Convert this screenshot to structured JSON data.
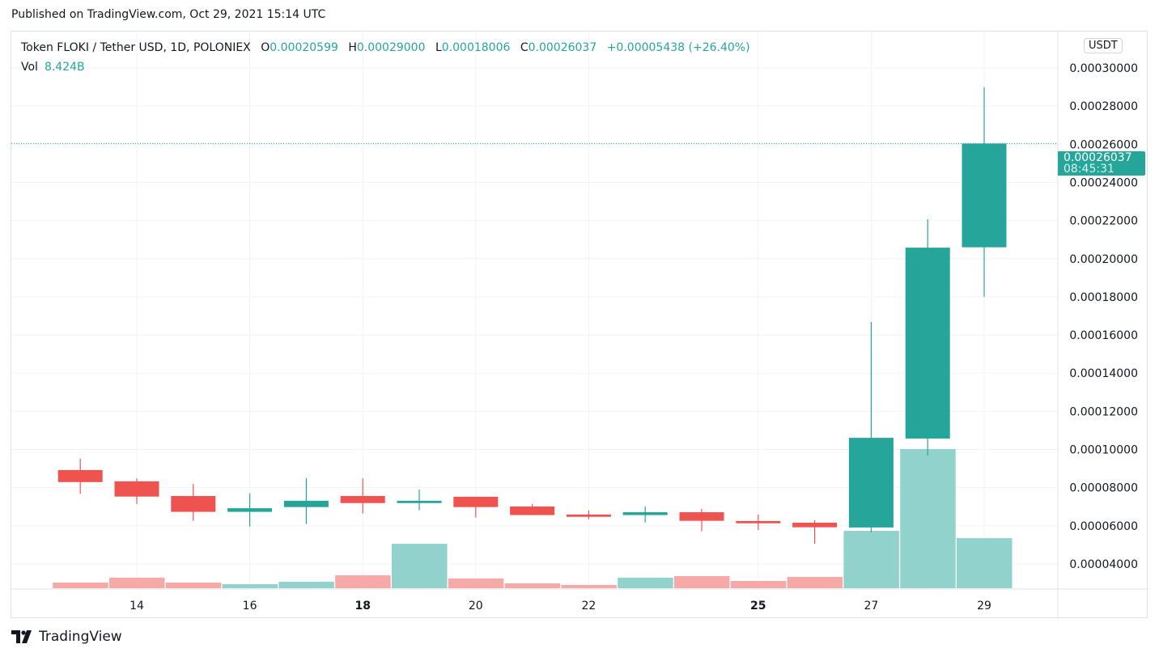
{
  "published": "Published on TradingView.com, Oct 29, 2021 15:14 UTC",
  "legend": {
    "symbol": "Token FLOKI / Tether USD, 1D, POLONIEX",
    "o_label": "O",
    "o": "0.00020599",
    "h_label": "H",
    "h": "0.00029000",
    "l_label": "L",
    "l": "0.00018006",
    "c_label": "C",
    "c": "0.00026037",
    "change": "+0.00005438 (+26.40%)",
    "vol_label": "Vol",
    "vol": "8.424B"
  },
  "price_axis": {
    "unit": "USDT",
    "current_price": "0.00026037",
    "countdown": "08:45:31"
  },
  "footer": {
    "brand": "TradingView"
  },
  "colors": {
    "up": "#26a69a",
    "down": "#ef5350",
    "up_vol": "#92d2cc",
    "down_vol": "#f7a9a7"
  },
  "chart_data": {
    "type": "candlestick",
    "title": "Token FLOKI / Tether USD, 1D, POLONIEX",
    "ylabel": "USDT",
    "ylim": [
      3e-05,
      0.00031
    ],
    "yticks": [
      "0.00004000",
      "0.00006000",
      "0.00008000",
      "0.00010000",
      "0.00012000",
      "0.00014000",
      "0.00016000",
      "0.00018000",
      "0.00020000",
      "0.00022000",
      "0.00024000",
      "0.00026000",
      "0.00028000",
      "0.00030000"
    ],
    "ytick_values": [
      4e-05,
      6e-05,
      8e-05,
      0.0001,
      0.00012,
      0.00014,
      0.00016,
      0.00018,
      0.0002,
      0.00022,
      0.00024,
      0.00026,
      0.00028,
      0.0003
    ],
    "xticks": [
      {
        "day": 14,
        "label": "14"
      },
      {
        "day": 16,
        "label": "16"
      },
      {
        "day": 18,
        "label": "18",
        "bold": true
      },
      {
        "day": 20,
        "label": "20"
      },
      {
        "day": 22,
        "label": "22"
      },
      {
        "day": 25,
        "label": "25",
        "bold": true
      },
      {
        "day": 27,
        "label": "27"
      },
      {
        "day": 29,
        "label": "29"
      }
    ],
    "candles": [
      {
        "day": 13,
        "o": 8.92e-05,
        "h": 9.51e-05,
        "l": 7.68e-05,
        "c": 8.29e-05,
        "vol": 0.95
      },
      {
        "day": 14,
        "o": 8.33e-05,
        "h": 8.49e-05,
        "l": 7.15e-05,
        "c": 7.53e-05,
        "vol": 1.77
      },
      {
        "day": 15,
        "o": 7.56e-05,
        "h": 8.19e-05,
        "l": 6.26e-05,
        "c": 6.73e-05,
        "vol": 0.95
      },
      {
        "day": 16,
        "o": 6.73e-05,
        "h": 7.69e-05,
        "l": 5.96e-05,
        "c": 6.92e-05,
        "vol": 0.68
      },
      {
        "day": 17,
        "o": 6.98e-05,
        "h": 8.49e-05,
        "l": 6.09e-05,
        "c": 7.31e-05,
        "vol": 1.09
      },
      {
        "day": 18,
        "o": 7.56e-05,
        "h": 8.49e-05,
        "l": 6.64e-05,
        "c": 7.19e-05,
        "vol": 2.17
      },
      {
        "day": 19,
        "o": 7.19e-05,
        "h": 7.9e-05,
        "l": 6.81e-05,
        "c": 7.31e-05,
        "vol": 7.47
      },
      {
        "day": 20,
        "o": 7.52e-05,
        "h": 7.52e-05,
        "l": 6.43e-05,
        "c": 6.98e-05,
        "vol": 1.63
      },
      {
        "day": 21,
        "o": 7.01e-05,
        "h": 7.14e-05,
        "l": 6.56e-05,
        "c": 6.56e-05,
        "vol": 0.82
      },
      {
        "day": 22,
        "o": 6.59e-05,
        "h": 6.8e-05,
        "l": 6.34e-05,
        "c": 6.47e-05,
        "vol": 0.54
      },
      {
        "day": 23,
        "o": 6.56e-05,
        "h": 7.01e-05,
        "l": 6.17e-05,
        "c": 6.71e-05,
        "vol": 1.77
      },
      {
        "day": 24,
        "o": 6.71e-05,
        "h": 6.88e-05,
        "l": 5.71e-05,
        "c": 6.26e-05,
        "vol": 2.04
      },
      {
        "day": 25,
        "o": 6.25e-05,
        "h": 6.59e-05,
        "l": 5.78e-05,
        "c": 6.13e-05,
        "vol": 1.22
      },
      {
        "day": 26,
        "o": 6.16e-05,
        "h": 6.29e-05,
        "l": 5.06e-05,
        "c": 5.92e-05,
        "vol": 1.9
      },
      {
        "day": 27,
        "o": 5.91e-05,
        "h": 0.0001668,
        "l": 5.65e-05,
        "c": 0.0001061,
        "vol": 9.65
      },
      {
        "day": 28,
        "o": 0.0001057,
        "h": 0.0002207,
        "l": 9.68e-05,
        "c": 0.0002058,
        "vol": 23.4
      },
      {
        "day": 29,
        "o": 0.00020599,
        "h": 0.00029,
        "l": 0.00018006,
        "c": 0.00026037,
        "vol": 8.424
      }
    ],
    "volume_unit": "B"
  }
}
